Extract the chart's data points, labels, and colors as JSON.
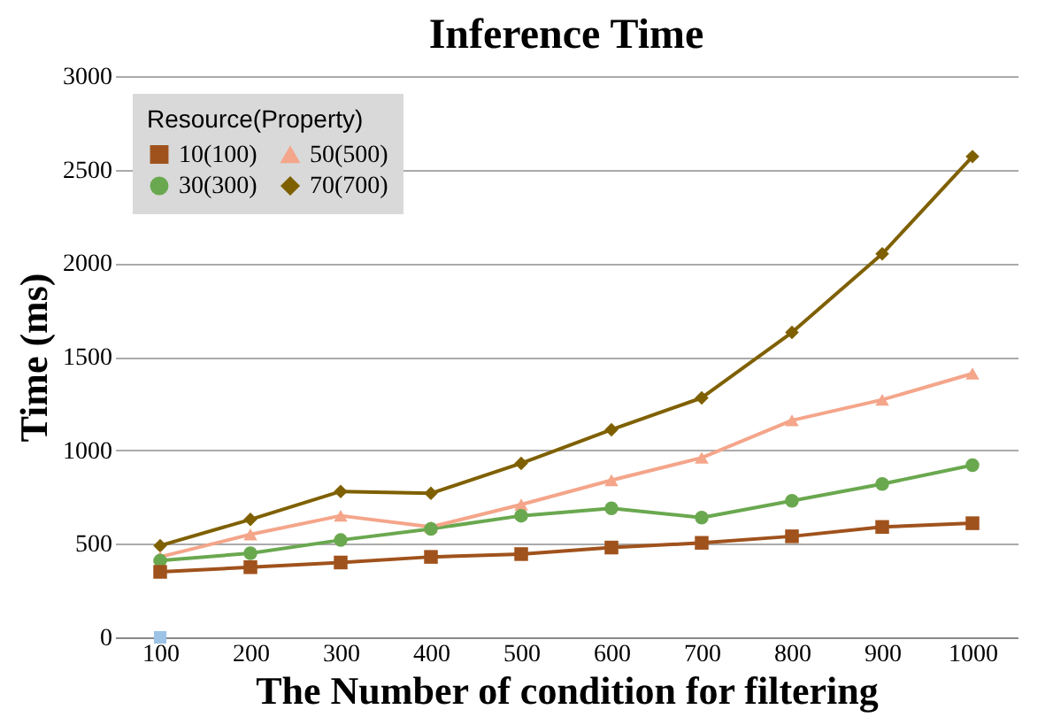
{
  "chart_data": {
    "type": "line",
    "title": "Inference Time",
    "xlabel": "The Number of condition for filtering",
    "ylabel": "Time (ms)",
    "legend_title": "Resource(Property)",
    "legend": "top left",
    "grid": "y",
    "categories": [
      "100",
      "200",
      "300",
      "400",
      "500",
      "600",
      "700",
      "800",
      "900",
      "1000"
    ],
    "ylim": [
      0,
      3000
    ],
    "yticks": [
      0,
      500,
      1000,
      1500,
      2000,
      2500,
      3000
    ],
    "series": [
      {
        "name": "10(100)",
        "color": "#a0521c",
        "marker": "square",
        "values": [
          350,
          375,
          400,
          430,
          445,
          480,
          505,
          540,
          590,
          610
        ]
      },
      {
        "name": "30(300)",
        "color": "#6aa84f",
        "marker": "circle",
        "values": [
          410,
          450,
          520,
          580,
          650,
          690,
          640,
          730,
          820,
          920
        ]
      },
      {
        "name": "50(500)",
        "color": "#f4a58a",
        "marker": "triangle",
        "values": [
          430,
          550,
          650,
          590,
          710,
          840,
          960,
          1160,
          1270,
          1410
        ]
      },
      {
        "name": "70(700)",
        "color": "#7f6000",
        "marker": "diamond",
        "values": [
          490,
          630,
          780,
          770,
          930,
          1110,
          1280,
          1630,
          2050,
          2570
        ]
      },
      {
        "type": "scatter",
        "color": "#9dc3e6",
        "marker": "square",
        "values": [
          0,
          null,
          null,
          null,
          null,
          null,
          null,
          null,
          null,
          null
        ]
      }
    ]
  }
}
